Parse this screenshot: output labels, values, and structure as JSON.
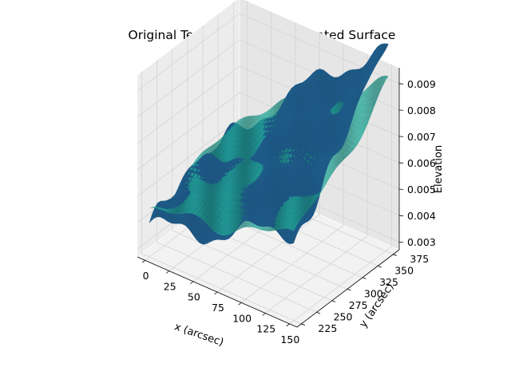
{
  "chart_data": {
    "type": "surface3d",
    "title": "Original Terrain and OLS Estimated Surface",
    "xlabel": "x (arcsec)",
    "ylabel": "y (arcsec)",
    "zlabel": "Elevation",
    "xlim": [
      -8,
      158
    ],
    "ylim": [
      218,
      385
    ],
    "zlim": [
      0.0027,
      0.0096
    ],
    "x_ticks": [
      0,
      25,
      50,
      75,
      100,
      125,
      150
    ],
    "y_ticks": [
      225,
      250,
      275,
      300,
      325,
      350,
      375
    ],
    "z_ticks": [
      0.003,
      0.004,
      0.005,
      0.006,
      0.007,
      0.008,
      0.009
    ],
    "x_tick_labels": [
      "0",
      "25",
      "50",
      "75",
      "100",
      "125",
      "150"
    ],
    "y_tick_labels": [
      "225",
      "250",
      "275",
      "300",
      "325",
      "350",
      "375"
    ],
    "z_tick_labels": [
      "0.003",
      "0.004",
      "0.005",
      "0.006",
      "0.007",
      "0.008",
      "0.009"
    ],
    "series": [
      {
        "color": "#1f5f8f",
        "x_range": [
          0,
          150
        ],
        "y_range": [
          225,
          380
        ],
        "z_range": [
          0.003,
          0.0093
        ]
      },
      {
        "color": "#1f9a8c",
        "x_range": [
          0,
          150
        ],
        "y_range": [
          225,
          380
        ],
        "z_range": [
          0.004,
          0.0085
        ]
      }
    ],
    "grid": true,
    "pane_color": "#f2f2f2"
  }
}
